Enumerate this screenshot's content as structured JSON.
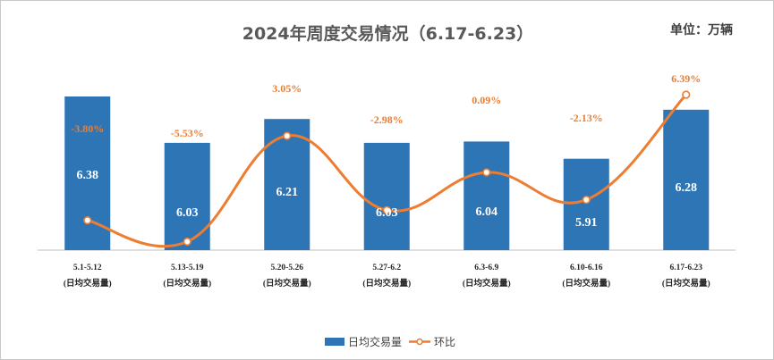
{
  "title": "2024年周度交易情况（6.17-6.23）",
  "unit": "单位：万辆",
  "colors": {
    "bar": "#2e75b6",
    "line": "#ed7d31"
  },
  "chart_data": {
    "type": "bar",
    "categories": [
      "5.1-5.12",
      "5.13-5.19",
      "5.20-5.26",
      "5.27-6.2",
      "6.3-6.9",
      "6.10-6.16",
      "6.17-6.23"
    ],
    "category_sublabel": "(日均交易量)",
    "series": [
      {
        "name": "日均交易量",
        "type": "bar",
        "values": [
          6.38,
          6.03,
          6.21,
          6.03,
          6.04,
          5.91,
          6.28
        ]
      },
      {
        "name": "环比",
        "type": "line",
        "values": [
          -3.8,
          -5.53,
          3.05,
          -2.98,
          0.09,
          -2.13,
          6.39
        ],
        "labels": [
          "-3.80%",
          "-5.53%",
          "3.05%",
          "-2.98%",
          "0.09%",
          "-2.13%",
          "6.39%"
        ]
      }
    ],
    "bar_labels": [
      "6.38",
      "6.03",
      "6.21",
      "6.03",
      "6.04",
      "5.91",
      "6.28"
    ],
    "legend": {
      "position": "bottom"
    },
    "grid": false
  }
}
